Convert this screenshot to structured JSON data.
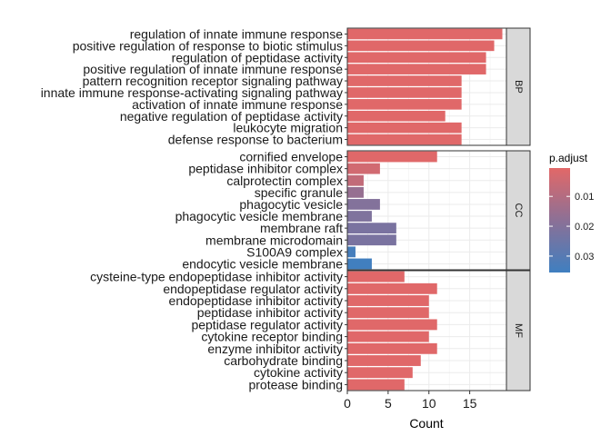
{
  "chart_data": {
    "type": "bar",
    "orientation": "horizontal",
    "xlabel": "Count",
    "xlim": [
      0,
      19.5
    ],
    "x_ticks": [
      0,
      5,
      10,
      15
    ],
    "grid": true,
    "legend": {
      "title": "p.adjust",
      "placement": "right",
      "ticks": [
        0.01,
        0.02,
        0.03
      ],
      "range": [
        0.0005,
        0.0355
      ],
      "color_low": "#E26868",
      "color_high": "#3F7FC0"
    },
    "facets": [
      {
        "name": "BP",
        "categories": [
          "regulation of innate immune response",
          "positive regulation of response to biotic stimulus",
          "regulation of peptidase activity",
          "positive regulation of innate immune response",
          "pattern recognition receptor signaling pathway",
          "innate immune response-activating signaling pathway",
          "activation of innate immune response",
          "negative regulation of peptidase activity",
          "leukocyte migration",
          "defense response to bacterium"
        ],
        "values": [
          19,
          18,
          17,
          17,
          14,
          14,
          14,
          12,
          14,
          14
        ],
        "p_adjust": [
          0.001,
          0.001,
          0.001,
          0.001,
          0.001,
          0.001,
          0.001,
          0.001,
          0.001,
          0.001
        ]
      },
      {
        "name": "CC",
        "categories": [
          "cornified envelope",
          "peptidase inhibitor complex",
          "calprotectin complex",
          "specific granule",
          "phagocytic vesicle",
          "phagocytic vesicle membrane",
          "membrane raft",
          "membrane microdomain",
          "S100A9 complex",
          "endocytic vesicle membrane"
        ],
        "values": [
          11,
          4,
          2,
          2,
          4,
          3,
          6,
          6,
          1,
          3
        ],
        "p_adjust": [
          0.001,
          0.004,
          0.007,
          0.016,
          0.02,
          0.021,
          0.022,
          0.022,
          0.034,
          0.035
        ]
      },
      {
        "name": "MF",
        "categories": [
          "cysteine-type endopeptidase inhibitor activity",
          "endopeptidase regulator activity",
          "endopeptidase inhibitor activity",
          "peptidase inhibitor activity",
          "peptidase regulator activity",
          "cytokine receptor binding",
          "enzyme inhibitor activity",
          "carbohydrate binding",
          "cytokine activity",
          "protease binding"
        ],
        "values": [
          7,
          11,
          10,
          10,
          11,
          10,
          11,
          9,
          8,
          7
        ],
        "p_adjust": [
          0.001,
          0.001,
          0.001,
          0.001,
          0.001,
          0.001,
          0.001,
          0.001,
          0.001,
          0.001
        ]
      }
    ]
  }
}
